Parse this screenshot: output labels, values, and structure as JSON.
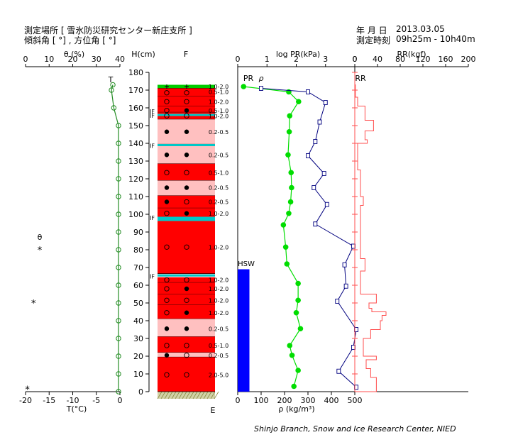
{
  "header": {
    "site_label": "測定場所 [ 雪氷防災研究センター新庄支所 ]",
    "angle_label": "傾斜角 [ °] , 方位角 [ °]",
    "date_label": "年 月 日",
    "date_value": "2013.03.05",
    "time_label": "測定時刻",
    "time_value": "09h25m - 10h40m"
  },
  "footer": {
    "credit": "Shinjo Branch, Snow and Ice Research Center, NIED"
  },
  "colors": {
    "temperature": "#228b22",
    "density": "#00dd00",
    "penetration": "#00007f",
    "ram": "#ff4d4d",
    "hsw": "#0000ff",
    "layer_dark": "#ff0000",
    "layer_light": "#ffc0c0",
    "crust": "#00c8c8",
    "top_layer": "#00cc00",
    "ground": "#b4b46e"
  },
  "chart_data": [
    {
      "type": "line",
      "name": "temperature_panel",
      "top_axis": {
        "label": "θ (%)",
        "ticks": [
          "0",
          "10",
          "20",
          "30",
          "40"
        ]
      },
      "bottom_axis": {
        "label": "T(°C)",
        "ticks": [
          "-20",
          "-15",
          "-10",
          "-5",
          "0"
        ]
      },
      "xlim": [
        -20,
        0
      ],
      "series_label": "T",
      "temperature": [
        {
          "h": 173,
          "t": -1.5
        },
        {
          "h": 170,
          "t": -1.8
        },
        {
          "h": 160,
          "t": -1.3
        },
        {
          "h": 150,
          "t": -0.3
        },
        {
          "h": 140,
          "t": -0.3
        },
        {
          "h": 130,
          "t": -0.3
        },
        {
          "h": 120,
          "t": -0.3
        },
        {
          "h": 110,
          "t": -0.3
        },
        {
          "h": 100,
          "t": -0.3
        },
        {
          "h": 90,
          "t": -0.3
        },
        {
          "h": 80,
          "t": -0.3
        },
        {
          "h": 70,
          "t": -0.3
        },
        {
          "h": 60,
          "t": -0.3
        },
        {
          "h": 50,
          "t": -0.3
        },
        {
          "h": 40,
          "t": -0.3
        },
        {
          "h": 30,
          "t": -0.3
        },
        {
          "h": 20,
          "t": -0.3
        },
        {
          "h": 10,
          "t": -0.3
        },
        {
          "h": 0,
          "t": -0.3
        }
      ],
      "theta_label": "θ",
      "stars": [
        {
          "h": 80,
          "x": -17
        },
        {
          "h": 50,
          "x": -18.3
        },
        {
          "h": 1.5,
          "x": -19.6
        }
      ]
    },
    {
      "type": "table",
      "name": "snow_stratigraphy",
      "height_axis": {
        "label": "H(cm)",
        "ticks": [
          "0",
          "10",
          "20",
          "30",
          "40",
          "50",
          "60",
          "70",
          "80",
          "90",
          "100",
          "110",
          "120",
          "130",
          "140",
          "150",
          "160",
          "170",
          "180"
        ],
        "ylim": [
          0,
          180
        ]
      },
      "column_label": "F",
      "bottom_label": "E",
      "if_label": "IF",
      "if_marks": [
        158.5,
        156,
        139,
        98.5,
        65.5
      ],
      "layers": [
        {
          "bottom": 171,
          "top": 173,
          "kind": "green"
        },
        {
          "bottom": 166.5,
          "top": 171,
          "kind": "dark"
        },
        {
          "bottom": 161,
          "top": 166.5,
          "kind": "dark"
        },
        {
          "bottom": 157.5,
          "top": 161,
          "kind": "dark"
        },
        {
          "bottom": 153.5,
          "top": 157.5,
          "kind": "dark"
        },
        {
          "bottom": 139.5,
          "top": 153.5,
          "kind": "light"
        },
        {
          "bottom": 128.5,
          "top": 138.5,
          "kind": "light"
        },
        {
          "bottom": 119,
          "top": 128.5,
          "kind": "dark"
        },
        {
          "bottom": 110.5,
          "top": 119,
          "kind": "light"
        },
        {
          "bottom": 103.5,
          "top": 110.5,
          "kind": "dark"
        },
        {
          "bottom": 98,
          "top": 103.5,
          "kind": "dark"
        },
        {
          "bottom": 66.5,
          "top": 96.5,
          "kind": "dark"
        },
        {
          "bottom": 61.5,
          "top": 64.5,
          "kind": "dark"
        },
        {
          "bottom": 55,
          "top": 61.5,
          "kind": "dark"
        },
        {
          "bottom": 49,
          "top": 55,
          "kind": "dark"
        },
        {
          "bottom": 41,
          "top": 49,
          "kind": "dark"
        },
        {
          "bottom": 31,
          "top": 41,
          "kind": "light"
        },
        {
          "bottom": 22,
          "top": 31,
          "kind": "dark"
        },
        {
          "bottom": 19.5,
          "top": 22,
          "kind": "light"
        },
        {
          "bottom": 0,
          "top": 19.5,
          "kind": "dark"
        }
      ],
      "crusts": [
        139,
        98,
        96.8,
        65.5,
        156
      ],
      "symbols": [
        {
          "h": 172,
          "l": "plus",
          "r": "plus"
        },
        {
          "h": 168.5,
          "l": "open",
          "r": "open"
        },
        {
          "h": 163.5,
          "l": "open",
          "r": "open"
        },
        {
          "h": 158.5,
          "l": "open",
          "r": "dot"
        },
        {
          "h": 155.5,
          "l": "open",
          "r": "open"
        },
        {
          "h": 146.5,
          "l": "dot",
          "r": "dot"
        },
        {
          "h": 133.5,
          "l": "dot",
          "r": "dot"
        },
        {
          "h": 123.5,
          "l": "open",
          "r": "open"
        },
        {
          "h": 115,
          "l": "dot",
          "r": "dot"
        },
        {
          "h": 107,
          "l": "dot",
          "r": "open"
        },
        {
          "h": 100.5,
          "l": "open",
          "r": "dot"
        },
        {
          "h": 81.5,
          "l": "open",
          "r": "open"
        },
        {
          "h": 63,
          "l": "open",
          "r": "open"
        },
        {
          "h": 58,
          "l": "open",
          "r": "dot"
        },
        {
          "h": 51.5,
          "l": "open",
          "r": "open"
        },
        {
          "h": 44.5,
          "l": "open",
          "r": "dot"
        },
        {
          "h": 35.5,
          "l": "dot",
          "r": "dot"
        },
        {
          "h": 26,
          "l": "open",
          "r": "open"
        },
        {
          "h": 20.5,
          "l": "dot",
          "r": "open"
        },
        {
          "h": 9.5,
          "l": "open",
          "r": "open"
        }
      ],
      "grain_sizes": [
        {
          "h": 172,
          "text": "1.0-2.0"
        },
        {
          "h": 169,
          "text": "0.5-1.0"
        },
        {
          "h": 163.5,
          "text": "1.0-2.0"
        },
        {
          "h": 158.5,
          "text": "0.5-1.0"
        },
        {
          "h": 155.5,
          "text": "1.0-2.0"
        },
        {
          "h": 146.5,
          "text": "0.2-0.5"
        },
        {
          "h": 133.5,
          "text": "0.2-0.5"
        },
        {
          "h": 123.5,
          "text": "0.5-1.0"
        },
        {
          "h": 115,
          "text": "0.2-0.5"
        },
        {
          "h": 107,
          "text": "0.2-0.5"
        },
        {
          "h": 100.5,
          "text": "1.0-2.0"
        },
        {
          "h": 81.5,
          "text": "1.0-2.0"
        },
        {
          "h": 63,
          "text": "1.0-2.0"
        },
        {
          "h": 58,
          "text": "1.0-2.0"
        },
        {
          "h": 51.5,
          "text": "1.0-2.0"
        },
        {
          "h": 44.5,
          "text": "1.0-2.0"
        },
        {
          "h": 35.5,
          "text": "0.2-0.5"
        },
        {
          "h": 26,
          "text": "0.5-1.0"
        },
        {
          "h": 20.5,
          "text": "0.2-0.5"
        },
        {
          "h": 9.5,
          "text": "2.0-5.0"
        }
      ]
    },
    {
      "type": "line",
      "name": "density_penetration_panel",
      "top_axis": {
        "label": "log PR(kPa)",
        "ticks": [
          "0",
          "1",
          "2",
          "3",
          "0"
        ],
        "xlim": [
          0,
          4
        ]
      },
      "bottom_axis": {
        "label": "ρ (kg/m³)",
        "ticks": [
          "0",
          "100",
          "200",
          "300",
          "400",
          "500"
        ],
        "xlim": [
          0,
          500
        ]
      },
      "pr_label": "PR",
      "rho_label": "ρ",
      "hsw_label": "HSW",
      "hsw_bar": {
        "x_from": 0,
        "x_to": 50,
        "h_from": 0,
        "h_to": 69
      },
      "density": [
        {
          "h": 172,
          "rho": 25
        },
        {
          "h": 169,
          "rho": 218
        },
        {
          "h": 163.5,
          "rho": 260
        },
        {
          "h": 155.5,
          "rho": 222
        },
        {
          "h": 146.5,
          "rho": 220
        },
        {
          "h": 133.5,
          "rho": 215
        },
        {
          "h": 123.5,
          "rho": 228
        },
        {
          "h": 115,
          "rho": 230
        },
        {
          "h": 107,
          "rho": 226
        },
        {
          "h": 100.5,
          "rho": 218
        },
        {
          "h": 94,
          "rho": 195
        },
        {
          "h": 81.5,
          "rho": 205
        },
        {
          "h": 72,
          "rho": 210
        },
        {
          "h": 61,
          "rho": 258
        },
        {
          "h": 51.5,
          "rho": 258
        },
        {
          "h": 44.5,
          "rho": 250
        },
        {
          "h": 35.5,
          "rho": 268
        },
        {
          "h": 26,
          "rho": 222
        },
        {
          "h": 20.5,
          "rho": 232
        },
        {
          "h": 12,
          "rho": 258
        },
        {
          "h": 3,
          "rho": 240
        }
      ],
      "log_pr": [
        {
          "h": 171,
          "v": 0.8
        },
        {
          "h": 169,
          "v": 2.4
        },
        {
          "h": 163,
          "v": 3.0
        },
        {
          "h": 152,
          "v": 2.8
        },
        {
          "h": 141,
          "v": 2.65
        },
        {
          "h": 133,
          "v": 2.4
        },
        {
          "h": 123,
          "v": 2.95
        },
        {
          "h": 115,
          "v": 2.6
        },
        {
          "h": 105.5,
          "v": 3.05
        },
        {
          "h": 94.5,
          "v": 2.65
        },
        {
          "h": 82,
          "v": 3.95
        },
        {
          "h": 71.5,
          "v": 3.65
        },
        {
          "h": 59.5,
          "v": 3.7
        },
        {
          "h": 51,
          "v": 3.4
        },
        {
          "h": 35,
          "v": 4.05
        },
        {
          "h": 25,
          "v": 3.95
        },
        {
          "h": 11.5,
          "v": 3.45
        },
        {
          "h": 2.5,
          "v": 4.05
        }
      ]
    },
    {
      "type": "bar",
      "name": "ram_resistance_panel",
      "top_axis": {
        "label": "RR(kgf)",
        "ticks": [
          "0",
          "40",
          "80",
          "120",
          "160",
          "200"
        ],
        "xlim": [
          0,
          200
        ]
      },
      "series_label": "RR",
      "steps": [
        {
          "top": 173,
          "bottom": 166,
          "rr": 1
        },
        {
          "top": 166,
          "bottom": 161,
          "rr": 5
        },
        {
          "top": 161,
          "bottom": 153,
          "rr": 18
        },
        {
          "top": 153,
          "bottom": 147,
          "rr": 33
        },
        {
          "top": 147,
          "bottom": 142,
          "rr": 18
        },
        {
          "top": 142,
          "bottom": 140,
          "rr": 22
        },
        {
          "top": 140,
          "bottom": 125,
          "rr": 5
        },
        {
          "top": 125,
          "bottom": 115,
          "rr": 10
        },
        {
          "top": 115,
          "bottom": 110,
          "rr": 10
        },
        {
          "top": 110,
          "bottom": 105,
          "rr": 15
        },
        {
          "top": 105,
          "bottom": 100,
          "rr": 10
        },
        {
          "top": 100,
          "bottom": 75,
          "rr": 10
        },
        {
          "top": 75,
          "bottom": 68,
          "rr": 18
        },
        {
          "top": 68,
          "bottom": 60,
          "rr": 10
        },
        {
          "top": 60,
          "bottom": 55,
          "rr": 10
        },
        {
          "top": 55,
          "bottom": 50,
          "rr": 38
        },
        {
          "top": 50,
          "bottom": 47,
          "rr": 25
        },
        {
          "top": 47,
          "bottom": 45,
          "rr": 30
        },
        {
          "top": 45,
          "bottom": 43,
          "rr": 55
        },
        {
          "top": 43,
          "bottom": 40,
          "rr": 48
        },
        {
          "top": 40,
          "bottom": 35,
          "rr": 45
        },
        {
          "top": 35,
          "bottom": 30,
          "rr": 28
        },
        {
          "top": 30,
          "bottom": 25,
          "rr": 15
        },
        {
          "top": 25,
          "bottom": 20,
          "rr": 15
        },
        {
          "top": 20,
          "bottom": 18,
          "rr": 38
        },
        {
          "top": 18,
          "bottom": 13,
          "rr": 20
        },
        {
          "top": 13,
          "bottom": 8,
          "rr": 28
        },
        {
          "top": 8,
          "bottom": 5,
          "rr": 38
        },
        {
          "top": 5,
          "bottom": 0,
          "rr": 38
        }
      ]
    }
  ]
}
